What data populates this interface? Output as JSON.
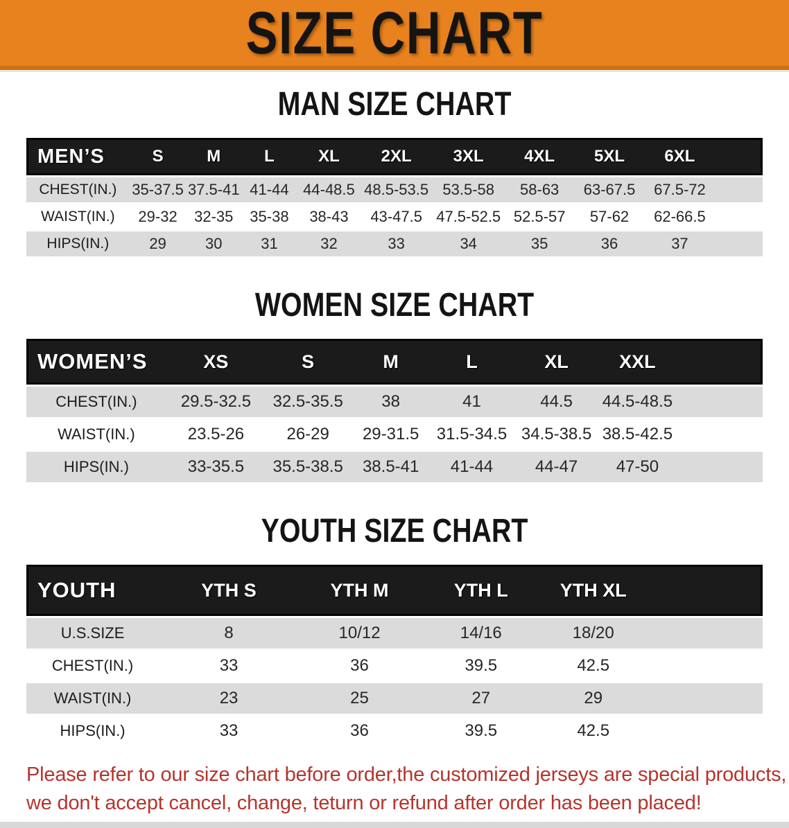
{
  "banner": {
    "title": "SIZE CHART",
    "bg_color": "#E8821E",
    "text_color": "#161413"
  },
  "chart_data": [
    {
      "type": "table",
      "id": "men",
      "title": "MAN SIZE CHART",
      "columns": [
        "MEN’S",
        "S",
        "M",
        "L",
        "XL",
        "2XL",
        "3XL",
        "4XL",
        "5XL",
        "6XL"
      ],
      "rows": [
        [
          "CHEST(IN.)",
          "35-37.5",
          "37.5-41",
          "41-44",
          "44-48.5",
          "48.5-53.5",
          "53.5-58",
          "58-63",
          "63-67.5",
          "67.5-72"
        ],
        [
          "WAIST(IN.)",
          "29-32",
          "32-35",
          "35-38",
          "38-43",
          "43-47.5",
          "47.5-52.5",
          "52.5-57",
          "57-62",
          "62-66.5"
        ],
        [
          "HIPS(IN.)",
          "29",
          "30",
          "31",
          "32",
          "33",
          "34",
          "35",
          "36",
          "37"
        ]
      ]
    },
    {
      "type": "table",
      "id": "women",
      "title": "WOMEN SIZE CHART",
      "columns": [
        "WOMEN’S",
        "XS",
        "S",
        "M",
        "L",
        "XL",
        "XXL"
      ],
      "rows": [
        [
          "CHEST(IN.)",
          "29.5-32.5",
          "32.5-35.5",
          "38",
          "41",
          "44.5",
          "44.5-48.5"
        ],
        [
          "WAIST(IN.)",
          "23.5-26",
          "26-29",
          "29-31.5",
          "31.5-34.5",
          "34.5-38.5",
          "38.5-42.5"
        ],
        [
          "HIPS(IN.)",
          "33-35.5",
          "35.5-38.5",
          "38.5-41",
          "41-44",
          "44-47",
          "47-50"
        ]
      ]
    },
    {
      "type": "table",
      "id": "youth",
      "title": "YOUTH SIZE CHART",
      "columns": [
        "YOUTH",
        "YTH S",
        "YTH M",
        "YTH L",
        "YTH XL"
      ],
      "rows": [
        [
          "U.S.SIZE",
          "8",
          "10/12",
          "14/16",
          "18/20"
        ],
        [
          "CHEST(IN.)",
          "33",
          "36",
          "39.5",
          "42.5"
        ],
        [
          "WAIST(IN.)",
          "23",
          "25",
          "27",
          "29"
        ],
        [
          "HIPS(IN.)",
          "33",
          "36",
          "39.5",
          "42.5"
        ]
      ]
    }
  ],
  "note": {
    "color": "#B5342C",
    "lines": [
      "Please refer to our size chart before order,the customized jerseys are special products,",
      "we don't accept cancel, change, teturn or refund after order has been placed!"
    ]
  },
  "colors": {
    "header_row_bg": "#1b1b1b",
    "gray_row_bg": "#DBDBDB",
    "white_row_bg": "#ffffff"
  }
}
